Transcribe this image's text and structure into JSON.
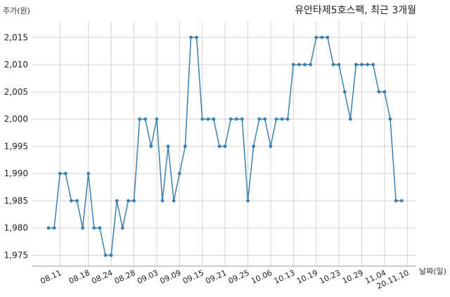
{
  "chart_data": {
    "type": "line",
    "title": "유안타제5호스팩, 최근 3개월",
    "ylabel": "주가(원)",
    "xlabel": "날짜(일)",
    "ylim": [
      1973,
      2018
    ],
    "yticks": [
      1975,
      1980,
      1985,
      1990,
      1995,
      2000,
      2005,
      2010,
      2015
    ],
    "ytick_labels": [
      "1,975",
      "1,980",
      "1,985",
      "1,990",
      "1,995",
      "2,000",
      "2,005",
      "2,010",
      "2,015"
    ],
    "xticks": [
      {
        "label": "08.11",
        "index": 2
      },
      {
        "label": "08.18",
        "index": 7
      },
      {
        "label": "08.24",
        "index": 11
      },
      {
        "label": "08.28",
        "index": 15
      },
      {
        "label": "09.03",
        "index": 19
      },
      {
        "label": "09.09",
        "index": 23
      },
      {
        "label": "09.15",
        "index": 27
      },
      {
        "label": "09.21",
        "index": 31
      },
      {
        "label": "09.25",
        "index": 35
      },
      {
        "label": "10.06",
        "index": 39
      },
      {
        "label": "10.13",
        "index": 43
      },
      {
        "label": "10.19",
        "index": 47
      },
      {
        "label": "10.23",
        "index": 51
      },
      {
        "label": "10.29",
        "index": 55
      },
      {
        "label": "11.04",
        "index": 59
      },
      {
        "label": "20.11.10",
        "index": 63
      }
    ],
    "grid": true,
    "series": [
      {
        "values": [
          1980,
          1980,
          1990,
          1990,
          1985,
          1985,
          1980,
          1990,
          1980,
          1980,
          1975,
          1975,
          1985,
          1980,
          1985,
          1985,
          2000,
          2000,
          1995,
          2000,
          1985,
          1995,
          1985,
          1990,
          1995,
          2015,
          2015,
          2000,
          2000,
          2000,
          1995,
          1995,
          2000,
          2000,
          2000,
          1985,
          1995,
          2000,
          2000,
          1995,
          2000,
          2000,
          2000,
          2010,
          2010,
          2010,
          2010,
          2015,
          2015,
          2015,
          2010,
          2010,
          2005,
          2000,
          2010,
          2010,
          2010,
          2010,
          2005,
          2005,
          2000,
          1985,
          1985
        ],
        "color": "#3a80b0"
      }
    ]
  }
}
